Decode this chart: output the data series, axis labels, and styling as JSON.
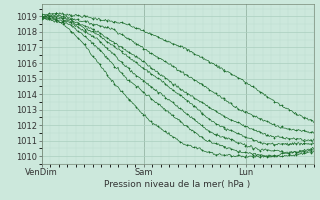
{
  "xlabel": "Pression niveau de la mer( hPa )",
  "ylim": [
    1009.5,
    1019.8
  ],
  "xlim": [
    0,
    96
  ],
  "yticks": [
    1010,
    1011,
    1012,
    1013,
    1014,
    1015,
    1016,
    1017,
    1018,
    1019
  ],
  "xtick_positions": [
    0,
    36,
    72
  ],
  "xtick_labels": [
    "VenDim",
    "Sam",
    "Lun"
  ],
  "bg_color": "#cce8dc",
  "grid_major_color": "#aacfbe",
  "grid_minor_color": "#bcdece",
  "line_color": "#1a6b2a",
  "marker": "+"
}
